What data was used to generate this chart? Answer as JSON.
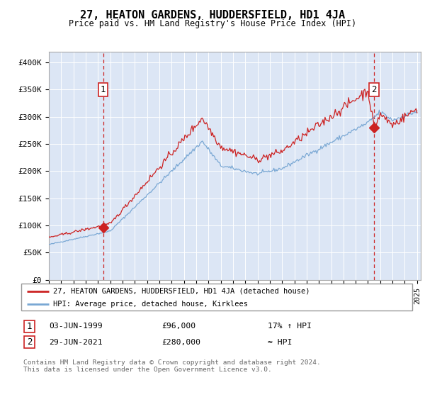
{
  "title": "27, HEATON GARDENS, HUDDERSFIELD, HD1 4JA",
  "subtitle": "Price paid vs. HM Land Registry's House Price Index (HPI)",
  "background_color": "#ffffff",
  "plot_bg_color": "#dce6f5",
  "hpi_color": "#7aa8d4",
  "price_color": "#cc2222",
  "dashed_color": "#cc2222",
  "ylim": [
    0,
    420000
  ],
  "yticks": [
    0,
    50000,
    100000,
    150000,
    200000,
    250000,
    300000,
    350000,
    400000
  ],
  "ytick_labels": [
    "£0",
    "£50K",
    "£100K",
    "£150K",
    "£200K",
    "£250K",
    "£300K",
    "£350K",
    "£400K"
  ],
  "sale1_date": "03-JUN-1999",
  "sale1_price": 96000,
  "sale2_date": "29-JUN-2021",
  "sale2_price": 280000,
  "sale1_hpi_pct": "17% ↑ HPI",
  "sale2_hpi_pct": "≈ HPI",
  "legend_line1": "27, HEATON GARDENS, HUDDERSFIELD, HD1 4JA (detached house)",
  "legend_line2": "HPI: Average price, detached house, Kirklees",
  "footer": "Contains HM Land Registry data © Crown copyright and database right 2024.\nThis data is licensed under the Open Government Licence v3.0.",
  "sale1_x": 1999.42,
  "sale2_x": 2021.49
}
